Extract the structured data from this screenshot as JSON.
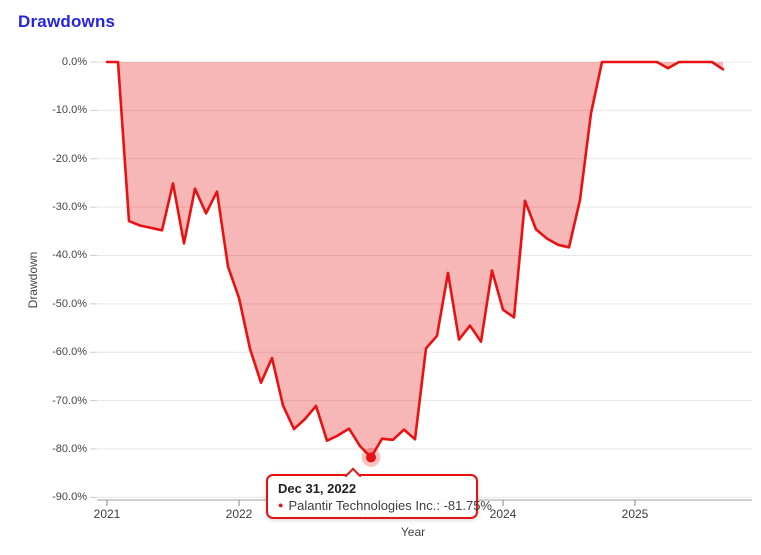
{
  "title": "Drawdowns",
  "tooltip": {
    "date": "Dec 31, 2022",
    "series_name": "Palantir Technologies Inc.",
    "value": "-81.75%",
    "text": "Palantir Technologies Inc.: -81.75%"
  },
  "colors": {
    "title": "#2424df",
    "line": "#e81212",
    "fill": "rgba(232,18,18,0.30)",
    "halo": "rgba(232,18,18,0.25)",
    "grid": "#e7e7e7",
    "axis_line": "#a0a0a0",
    "tick": "#8a8a8a",
    "ytick": "#cccccc",
    "axis_text": "#444444"
  },
  "chart_data": {
    "type": "area",
    "title": "Drawdowns",
    "xlabel": "Year",
    "ylabel": "Drawdown",
    "ylim": [
      -90,
      0
    ],
    "grid": true,
    "legend": "none",
    "series_name": "Palantir Technologies Inc.",
    "y_tick_values": [
      0,
      -10,
      -20,
      -30,
      -40,
      -50,
      -60,
      -70,
      -80,
      -90
    ],
    "y_tick_labels": [
      "0.0%",
      "-10.0%",
      "-20.0%",
      "-30.0%",
      "-40.0%",
      "-50.0%",
      "-60.0%",
      "-70.0%",
      "-80.0%",
      "-90.0%"
    ],
    "x_tick_labels": [
      "2021",
      "2022",
      "2023",
      "2024",
      "2025"
    ],
    "highlight": {
      "date": "2022-12-31",
      "value": -81.75
    },
    "points": [
      [
        "2020-12-31",
        0.0
      ],
      [
        "2021-01-31",
        0.0
      ],
      [
        "2021-02-28",
        -32.9
      ],
      [
        "2021-03-31",
        -33.8
      ],
      [
        "2021-04-30",
        -34.3
      ],
      [
        "2021-05-31",
        -34.8
      ],
      [
        "2021-06-30",
        -25.1
      ],
      [
        "2021-07-31",
        -37.5
      ],
      [
        "2021-08-31",
        -26.2
      ],
      [
        "2021-09-30",
        -31.3
      ],
      [
        "2021-10-31",
        -26.8
      ],
      [
        "2021-11-30",
        -42.3
      ],
      [
        "2021-12-31",
        -48.8
      ],
      [
        "2022-01-31",
        -59.3
      ],
      [
        "2022-02-28",
        -66.3
      ],
      [
        "2022-03-31",
        -61.2
      ],
      [
        "2022-04-30",
        -71.0
      ],
      [
        "2022-05-31",
        -75.9
      ],
      [
        "2022-06-30",
        -73.8
      ],
      [
        "2022-07-31",
        -71.1
      ],
      [
        "2022-08-31",
        -78.3
      ],
      [
        "2022-09-30",
        -77.2
      ],
      [
        "2022-10-31",
        -75.8
      ],
      [
        "2022-11-30",
        -79.4
      ],
      [
        "2022-12-31",
        -81.75
      ],
      [
        "2023-01-31",
        -77.9
      ],
      [
        "2023-02-28",
        -78.1
      ],
      [
        "2023-03-31",
        -76.0
      ],
      [
        "2023-04-30",
        -78.0
      ],
      [
        "2023-05-31",
        -59.2
      ],
      [
        "2023-06-30",
        -56.6
      ],
      [
        "2023-07-31",
        -43.6
      ],
      [
        "2023-08-31",
        -57.4
      ],
      [
        "2023-09-30",
        -54.5
      ],
      [
        "2023-10-31",
        -57.8
      ],
      [
        "2023-11-30",
        -43.1
      ],
      [
        "2023-12-31",
        -51.2
      ],
      [
        "2024-01-31",
        -52.8
      ],
      [
        "2024-02-29",
        -28.7
      ],
      [
        "2024-03-31",
        -34.6
      ],
      [
        "2024-04-30",
        -36.5
      ],
      [
        "2024-05-31",
        -37.8
      ],
      [
        "2024-06-30",
        -38.3
      ],
      [
        "2024-07-31",
        -28.5
      ],
      [
        "2024-08-31",
        -10.6
      ],
      [
        "2024-09-30",
        0.0
      ],
      [
        "2024-10-31",
        0.0
      ],
      [
        "2024-11-30",
        0.0
      ],
      [
        "2024-12-31",
        0.0
      ],
      [
        "2025-01-31",
        0.0
      ],
      [
        "2025-02-28",
        0.0
      ],
      [
        "2025-03-31",
        -1.3
      ],
      [
        "2025-04-30",
        0.0
      ],
      [
        "2025-05-31",
        0.0
      ],
      [
        "2025-06-30",
        0.0
      ],
      [
        "2025-07-31",
        0.0
      ],
      [
        "2025-08-31",
        -1.5
      ]
    ]
  }
}
